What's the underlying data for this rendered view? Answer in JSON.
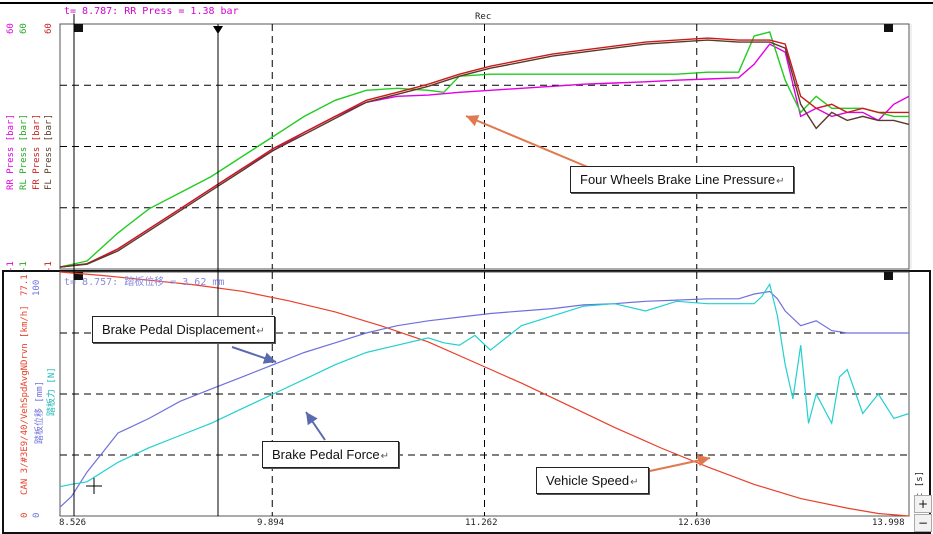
{
  "colors": {
    "rr_press": "#e000e0",
    "rl_press": "#22cc22",
    "fr_press": "#cc1a1a",
    "fl_press": "#5a3a2a",
    "speed": "#e8402a",
    "displacement": "#7070dd",
    "force": "#22d0d0",
    "callout_arrow": "#e07850"
  },
  "top_panel": {
    "cursor_readout": "t= 8.787: RR Press = 1.38 bar",
    "rec_label": "Rec",
    "channel_labels": [
      "RR Press [bar]",
      "RL Press [bar]",
      "FR Press [bar]",
      "FL Press [bar]"
    ],
    "scale_top": [
      "60",
      "60",
      "60"
    ],
    "scale_bottom": [
      "-1",
      "-1",
      "-1"
    ],
    "callout": "Four Wheels Brake Line Pressure",
    "callout_mark": "↵"
  },
  "bottom_panel": {
    "cursor_readout": "t= 8.757: 踏板位移 = 3.62 mm",
    "channel_labels": [
      "CAN 3/#3E9/40/VehSpdAvgNDrvn [km/h]",
      "踏板位移 [mm]",
      "踏板力 [N]"
    ],
    "scale_top": [
      "77.1",
      "100"
    ],
    "scale_bottom": [
      "0",
      "0"
    ],
    "callouts": {
      "displacement": "Brake Pedal Displacement",
      "force": "Brake Pedal Force",
      "speed": "Vehicle Speed"
    },
    "callout_mark": "↵"
  },
  "x_axis": {
    "ticks": [
      "8.526",
      "9.894",
      "11.262",
      "12.630",
      "13.998"
    ],
    "unit": "t [s]"
  },
  "toolbar": {
    "zoom_in": "+",
    "zoom_out": "−"
  },
  "chart_data": [
    {
      "type": "line",
      "title": "",
      "xlabel": "t [s]",
      "ylabel": "Press [bar]",
      "xlim": [
        8.526,
        13.998
      ],
      "ylim": [
        -1,
        60
      ],
      "grid": true,
      "series": [
        {
          "name": "RR Press [bar]",
          "x": [
            8.526,
            8.7,
            8.9,
            9.1,
            9.3,
            9.5,
            9.7,
            9.9,
            10.1,
            10.3,
            10.5,
            10.7,
            10.9,
            11.1,
            11.3,
            11.5,
            11.7,
            11.9,
            12.1,
            12.3,
            12.5,
            12.7,
            12.9,
            13.0,
            13.1,
            13.2,
            13.3,
            13.4,
            13.5,
            13.6,
            13.7,
            13.8,
            13.9,
            13.998
          ],
          "y": [
            -0.5,
            0.3,
            4,
            9,
            14,
            19,
            24,
            28.5,
            33,
            37,
            40.5,
            42,
            42.3,
            43,
            43.5,
            44,
            44.5,
            45,
            45.3,
            45.6,
            46,
            46.3,
            46.6,
            50,
            55,
            53,
            37,
            39,
            37,
            38,
            38,
            36,
            40,
            42
          ]
        },
        {
          "name": "RL Press [bar]",
          "x": [
            8.526,
            8.7,
            8.9,
            9.1,
            9.3,
            9.5,
            9.7,
            9.9,
            10.1,
            10.3,
            10.5,
            10.7,
            10.9,
            11.0,
            11.1,
            11.3,
            11.5,
            11.7,
            11.9,
            12.1,
            12.3,
            12.5,
            12.7,
            12.9,
            13.0,
            13.1,
            13.2,
            13.3,
            13.4,
            13.5,
            13.6,
            13.7,
            13.8,
            13.9,
            13.998
          ],
          "y": [
            -0.5,
            1,
            8,
            14,
            18,
            22,
            27,
            32,
            37,
            41,
            43.5,
            44,
            43.5,
            43,
            47,
            47.5,
            47.5,
            47.5,
            47.5,
            47.5,
            47.5,
            47.5,
            48,
            48,
            57,
            58,
            46,
            38,
            42,
            39,
            39,
            39,
            38,
            37,
            37
          ]
        },
        {
          "name": "FR Press [bar]",
          "x": [
            8.526,
            8.7,
            8.9,
            9.1,
            9.3,
            9.5,
            9.7,
            9.9,
            10.1,
            10.3,
            10.5,
            10.7,
            10.9,
            11.1,
            11.3,
            11.5,
            11.7,
            11.9,
            12.1,
            12.3,
            12.5,
            12.7,
            12.9,
            13.0,
            13.1,
            13.2,
            13.3,
            13.4,
            13.5,
            13.6,
            13.7,
            13.8,
            13.9,
            13.998
          ],
          "y": [
            -0.5,
            0.3,
            4,
            9,
            14,
            19,
            24,
            29,
            33,
            37,
            41,
            43,
            45,
            47.5,
            49.5,
            51,
            52.5,
            53.5,
            54.5,
            55.5,
            56,
            56.5,
            56,
            56,
            56,
            55,
            42,
            39,
            40,
            38,
            39,
            38,
            38,
            38
          ]
        },
        {
          "name": "FL Press [bar]",
          "x": [
            8.526,
            8.7,
            8.9,
            9.1,
            9.3,
            9.5,
            9.7,
            9.9,
            10.1,
            10.3,
            10.5,
            10.7,
            10.9,
            11.1,
            11.3,
            11.5,
            11.7,
            11.9,
            12.1,
            12.3,
            12.5,
            12.7,
            12.9,
            13.0,
            13.1,
            13.2,
            13.3,
            13.4,
            13.5,
            13.6,
            13.7,
            13.8,
            13.9,
            13.998
          ],
          "y": [
            -0.5,
            0.2,
            3.5,
            8.5,
            13.5,
            18.5,
            23.5,
            28.5,
            32.5,
            36.5,
            40.5,
            42.5,
            44.5,
            47,
            49,
            50.5,
            52,
            53,
            54,
            55,
            55.5,
            56,
            55.5,
            55.5,
            55.5,
            54,
            40,
            34,
            38,
            36,
            37,
            36,
            36,
            35
          ]
        }
      ]
    },
    {
      "type": "line",
      "title": "",
      "xlabel": "t [s]",
      "ylabel": "",
      "xlim": [
        8.526,
        13.998
      ],
      "ylim": [
        0,
        100
      ],
      "grid": true,
      "series": [
        {
          "name": "CAN 3/#3E9/40/VehSpdAvgNDrvn [km/h]",
          "x": [
            8.526,
            8.8,
            9.1,
            9.4,
            9.7,
            10.0,
            10.3,
            10.6,
            10.9,
            11.2,
            11.5,
            11.8,
            12.1,
            12.4,
            12.7,
            13.0,
            13.3,
            13.6,
            13.8,
            13.998
          ],
          "y": [
            77.1,
            76,
            74.5,
            73,
            71,
            68,
            64.5,
            60,
            55,
            48.5,
            42,
            35,
            28,
            21.5,
            15.5,
            10,
            5.5,
            2.5,
            0.8,
            0
          ]
        },
        {
          "name": "踏板位移 [mm]",
          "x": [
            8.526,
            8.6,
            8.7,
            8.8,
            8.9,
            9.1,
            9.3,
            9.5,
            9.7,
            9.9,
            10.1,
            10.3,
            10.5,
            10.7,
            10.9,
            11.1,
            11.3,
            11.5,
            11.7,
            11.9,
            12.1,
            12.3,
            12.5,
            12.7,
            12.8,
            12.9,
            13.0,
            13.1,
            13.15,
            13.2,
            13.3,
            13.4,
            13.5,
            13.6,
            13.8,
            13.998
          ],
          "y": [
            3.6,
            8,
            18,
            26,
            34,
            40,
            47,
            52,
            57,
            62,
            67,
            71,
            75,
            78,
            80,
            81.5,
            83,
            84,
            85,
            86.5,
            87,
            88,
            88.5,
            89,
            89,
            89,
            91,
            92,
            89,
            84,
            78,
            80,
            76,
            75,
            75,
            75
          ]
        },
        {
          "name": "踏板力 [N]",
          "x": [
            8.526,
            8.6,
            8.7,
            8.9,
            9.1,
            9.3,
            9.5,
            9.7,
            9.9,
            10.1,
            10.3,
            10.5,
            10.7,
            10.9,
            11.0,
            11.1,
            11.2,
            11.3,
            11.4,
            11.5,
            11.7,
            11.9,
            12.1,
            12.3,
            12.5,
            12.7,
            12.9,
            13.0,
            13.05,
            13.1,
            13.15,
            13.2,
            13.25,
            13.3,
            13.35,
            13.4,
            13.5,
            13.55,
            13.6,
            13.7,
            13.8,
            13.9,
            13.998
          ],
          "y": [
            12,
            13,
            14,
            22,
            28,
            33,
            38,
            44,
            50,
            56,
            62,
            67,
            70,
            73,
            71,
            70,
            74,
            68,
            73,
            78,
            82,
            86,
            87,
            84,
            88,
            87,
            87,
            87,
            90,
            95,
            82,
            62,
            48,
            70,
            38,
            50,
            38,
            57,
            60,
            42,
            50,
            40,
            42
          ]
        }
      ]
    }
  ]
}
